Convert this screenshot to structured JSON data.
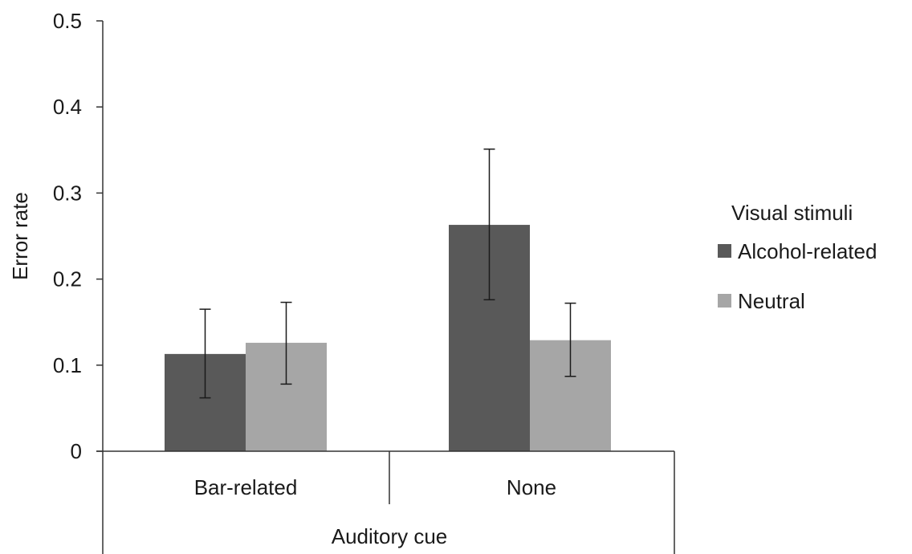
{
  "chart_data": {
    "type": "bar",
    "title": "",
    "xlabel": "Auditory cue",
    "ylabel": "Error rate",
    "categories": [
      "Bar-related",
      "None"
    ],
    "ylim": [
      0,
      0.5
    ],
    "yticks": [
      0,
      0.1,
      0.2,
      0.3,
      0.4,
      0.5
    ],
    "ytick_labels": [
      "0",
      "0.1",
      "0.2",
      "0.3",
      "0.4",
      "0.5"
    ],
    "grid": false,
    "legend": {
      "title": "Visual stimuli",
      "position": "right"
    },
    "series": [
      {
        "name": "Alcohol-related",
        "color": "#595959",
        "values": [
          0.113,
          0.263
        ],
        "error_low": [
          0.062,
          0.176
        ],
        "error_high": [
          0.165,
          0.351
        ]
      },
      {
        "name": "Neutral",
        "color": "#a6a6a6",
        "values": [
          0.126,
          0.129
        ],
        "error_low": [
          0.078,
          0.087
        ],
        "error_high": [
          0.173,
          0.172
        ]
      }
    ]
  }
}
